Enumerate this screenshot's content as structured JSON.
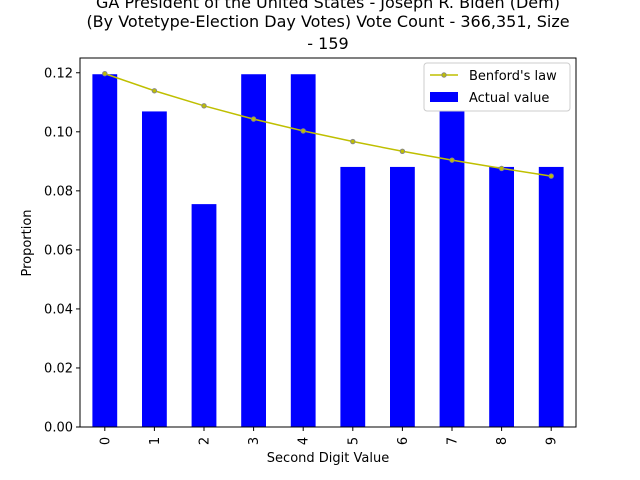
{
  "chart_data": {
    "type": "bar",
    "title_lines": [
      "GA President of the United States - Joseph R. Biden (Dem)",
      "(By Votetype-Election Day Votes) Vote Count - 366,351, Size",
      "- 159"
    ],
    "xlabel": "Second Digit Value",
    "ylabel": "Proportion",
    "categories": [
      "0",
      "1",
      "2",
      "3",
      "4",
      "5",
      "6",
      "7",
      "8",
      "9"
    ],
    "ylim": [
      0.0,
      0.125
    ],
    "yticks": [
      "0.00",
      "0.02",
      "0.04",
      "0.06",
      "0.08",
      "0.10",
      "0.12"
    ],
    "series": [
      {
        "name": "Actual value",
        "kind": "bar",
        "color": "#0000ff",
        "values": [
          0.1195,
          0.1069,
          0.0755,
          0.1195,
          0.1195,
          0.0881,
          0.0881,
          0.1069,
          0.0881,
          0.0881
        ]
      },
      {
        "name": "Benford's law",
        "kind": "line",
        "color": "#bfbf00",
        "values": [
          0.1197,
          0.1139,
          0.1088,
          0.1043,
          0.1003,
          0.0967,
          0.0934,
          0.0904,
          0.0876,
          0.085
        ]
      }
    ],
    "legend_position": "upper-right",
    "grid": false
  }
}
